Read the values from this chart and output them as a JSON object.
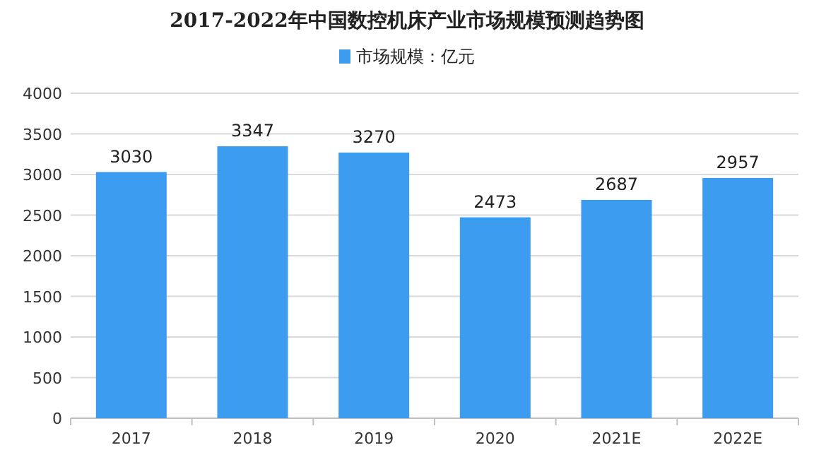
{
  "chart_data": {
    "type": "bar",
    "title": "2017-2022年中国数控机床产业市场规模预测趋势图",
    "categories": [
      "2017",
      "2018",
      "2019",
      "2020",
      "2021E",
      "2022E"
    ],
    "series": [
      {
        "name": "市场规模：亿元",
        "color": "#3b9cf0",
        "values": [
          3030,
          3347,
          3270,
          2473,
          2687,
          2957
        ]
      }
    ],
    "ylim": [
      0,
      4000
    ],
    "yticks": [
      0,
      500,
      1000,
      1500,
      2000,
      2500,
      3000,
      3500,
      4000
    ],
    "grid": "y",
    "legend": "top",
    "data_labels": true
  }
}
